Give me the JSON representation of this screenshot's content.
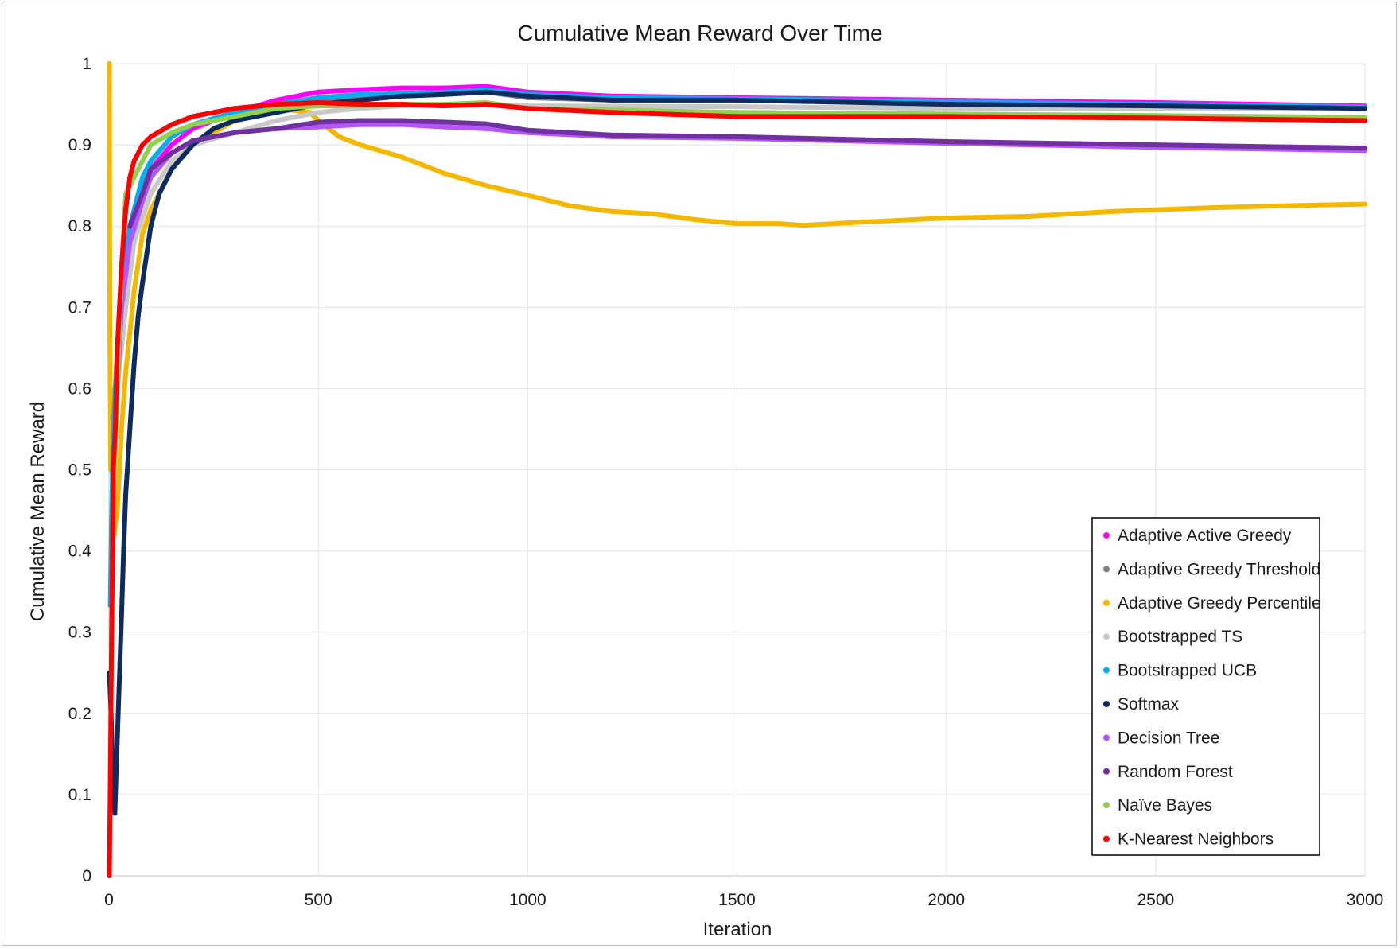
{
  "chart_data": {
    "type": "scatter",
    "title": "Cumulative Mean Reward Over Time",
    "xlabel": "Iteration",
    "ylabel": "Cumulative Mean Reward",
    "xlim": [
      0,
      3000
    ],
    "ylim": [
      0,
      1
    ],
    "xticks": [
      0,
      500,
      1000,
      1500,
      2000,
      2500,
      3000
    ],
    "yticks": [
      0,
      0.1,
      0.2,
      0.3,
      0.4,
      0.5,
      0.6,
      0.7,
      0.8,
      0.9,
      1
    ],
    "grid": "both",
    "legend_position": "bottom-right",
    "series": [
      {
        "name": "Adaptive Active Greedy",
        "color": "#ff00ff",
        "points": [
          [
            10,
            0.5
          ],
          [
            20,
            0.6
          ],
          [
            30,
            0.7
          ],
          [
            50,
            0.78
          ],
          [
            80,
            0.84
          ],
          [
            100,
            0.87
          ],
          [
            150,
            0.9
          ],
          [
            200,
            0.92
          ],
          [
            300,
            0.94
          ],
          [
            400,
            0.955
          ],
          [
            500,
            0.965
          ],
          [
            600,
            0.968
          ],
          [
            700,
            0.97
          ],
          [
            800,
            0.97
          ],
          [
            900,
            0.972
          ],
          [
            1000,
            0.965
          ],
          [
            1200,
            0.96
          ],
          [
            1500,
            0.958
          ],
          [
            2000,
            0.955
          ],
          [
            2500,
            0.952
          ],
          [
            3000,
            0.948
          ]
        ]
      },
      {
        "name": "Adaptive Greedy Threshold",
        "color": "#808080",
        "points": [
          [
            10,
            0.5
          ],
          [
            20,
            0.65
          ],
          [
            30,
            0.72
          ],
          [
            50,
            0.8
          ],
          [
            80,
            0.85
          ],
          [
            100,
            0.88
          ],
          [
            150,
            0.91
          ],
          [
            200,
            0.925
          ],
          [
            300,
            0.94
          ],
          [
            400,
            0.95
          ],
          [
            500,
            0.955
          ],
          [
            600,
            0.958
          ],
          [
            700,
            0.96
          ],
          [
            800,
            0.962
          ],
          [
            900,
            0.965
          ],
          [
            1000,
            0.958
          ],
          [
            1200,
            0.955
          ],
          [
            1500,
            0.955
          ],
          [
            2000,
            0.952
          ],
          [
            2500,
            0.95
          ],
          [
            3000,
            0.946
          ]
        ]
      },
      {
        "name": "Adaptive Greedy Percentile",
        "color": "#f5b800",
        "points": [
          [
            1,
            1.0
          ],
          [
            2,
            0.667
          ],
          [
            4,
            0.5
          ],
          [
            5,
            0.6
          ],
          [
            8,
            0.5
          ],
          [
            12,
            0.42
          ],
          [
            20,
            0.45
          ],
          [
            30,
            0.55
          ],
          [
            40,
            0.62
          ],
          [
            60,
            0.72
          ],
          [
            80,
            0.79
          ],
          [
            100,
            0.82
          ],
          [
            150,
            0.87
          ],
          [
            200,
            0.9
          ],
          [
            300,
            0.93
          ],
          [
            400,
            0.945
          ],
          [
            480,
            0.94
          ],
          [
            500,
            0.93
          ],
          [
            550,
            0.91
          ],
          [
            600,
            0.9
          ],
          [
            700,
            0.885
          ],
          [
            800,
            0.865
          ],
          [
            900,
            0.85
          ],
          [
            1000,
            0.838
          ],
          [
            1100,
            0.825
          ],
          [
            1200,
            0.818
          ],
          [
            1300,
            0.815
          ],
          [
            1400,
            0.808
          ],
          [
            1500,
            0.803
          ],
          [
            1600,
            0.803
          ],
          [
            1660,
            0.801
          ],
          [
            1800,
            0.805
          ],
          [
            2000,
            0.81
          ],
          [
            2200,
            0.812
          ],
          [
            2400,
            0.818
          ],
          [
            2600,
            0.822
          ],
          [
            2800,
            0.825
          ],
          [
            3000,
            0.827
          ]
        ]
      },
      {
        "name": "Bootstrapped TS",
        "color": "#c8c8c8",
        "points": [
          [
            10,
            0.5
          ],
          [
            20,
            0.6
          ],
          [
            40,
            0.7
          ],
          [
            60,
            0.78
          ],
          [
            100,
            0.84
          ],
          [
            150,
            0.88
          ],
          [
            200,
            0.9
          ],
          [
            300,
            0.915
          ],
          [
            400,
            0.93
          ],
          [
            500,
            0.94
          ],
          [
            600,
            0.945
          ],
          [
            700,
            0.948
          ],
          [
            800,
            0.95
          ],
          [
            900,
            0.95
          ],
          [
            1000,
            0.948
          ],
          [
            1500,
            0.947
          ],
          [
            2000,
            0.945
          ],
          [
            2500,
            0.945
          ],
          [
            3000,
            0.944
          ]
        ]
      },
      {
        "name": "Bootstrapped UCB",
        "color": "#00b0f0",
        "points": [
          [
            3,
            0.333
          ],
          [
            5,
            0.4
          ],
          [
            10,
            0.55
          ],
          [
            20,
            0.65
          ],
          [
            30,
            0.72
          ],
          [
            50,
            0.8
          ],
          [
            80,
            0.86
          ],
          [
            100,
            0.88
          ],
          [
            150,
            0.91
          ],
          [
            200,
            0.925
          ],
          [
            300,
            0.94
          ],
          [
            400,
            0.95
          ],
          [
            500,
            0.958
          ],
          [
            600,
            0.962
          ],
          [
            700,
            0.963
          ],
          [
            800,
            0.965
          ],
          [
            900,
            0.968
          ],
          [
            1000,
            0.962
          ],
          [
            1200,
            0.958
          ],
          [
            1500,
            0.957
          ],
          [
            2000,
            0.953
          ],
          [
            2500,
            0.95
          ],
          [
            3000,
            0.947
          ]
        ]
      },
      {
        "name": "Softmax",
        "color": "#0d2b5e",
        "points": [
          [
            1,
            0.25
          ],
          [
            5,
            0.2
          ],
          [
            10,
            0.11
          ],
          [
            14,
            0.077
          ],
          [
            18,
            0.14
          ],
          [
            22,
            0.2
          ],
          [
            26,
            0.26
          ],
          [
            30,
            0.32
          ],
          [
            35,
            0.4
          ],
          [
            40,
            0.47
          ],
          [
            50,
            0.55
          ],
          [
            60,
            0.63
          ],
          [
            70,
            0.69
          ],
          [
            80,
            0.73
          ],
          [
            100,
            0.8
          ],
          [
            120,
            0.84
          ],
          [
            150,
            0.87
          ],
          [
            200,
            0.9
          ],
          [
            250,
            0.92
          ],
          [
            300,
            0.93
          ],
          [
            400,
            0.94
          ],
          [
            500,
            0.95
          ],
          [
            600,
            0.955
          ],
          [
            700,
            0.96
          ],
          [
            800,
            0.962
          ],
          [
            900,
            0.965
          ],
          [
            1000,
            0.96
          ],
          [
            1200,
            0.955
          ],
          [
            1500,
            0.955
          ],
          [
            2000,
            0.95
          ],
          [
            2500,
            0.948
          ],
          [
            3000,
            0.945
          ]
        ]
      },
      {
        "name": "Decision Tree",
        "color": "#b455ff",
        "points": [
          [
            10,
            0.5
          ],
          [
            20,
            0.6
          ],
          [
            30,
            0.7
          ],
          [
            50,
            0.78
          ],
          [
            80,
            0.83
          ],
          [
            100,
            0.86
          ],
          [
            150,
            0.89
          ],
          [
            200,
            0.905
          ],
          [
            300,
            0.915
          ],
          [
            400,
            0.92
          ],
          [
            500,
            0.922
          ],
          [
            600,
            0.925
          ],
          [
            700,
            0.925
          ],
          [
            800,
            0.922
          ],
          [
            900,
            0.92
          ],
          [
            1000,
            0.915
          ],
          [
            1200,
            0.91
          ],
          [
            1500,
            0.908
          ],
          [
            2000,
            0.902
          ],
          [
            2500,
            0.897
          ],
          [
            3000,
            0.893
          ]
        ]
      },
      {
        "name": "Random Forest",
        "color": "#7030a0",
        "points": [
          [
            50,
            0.8
          ],
          [
            80,
            0.84
          ],
          [
            100,
            0.87
          ],
          [
            150,
            0.89
          ],
          [
            200,
            0.905
          ],
          [
            300,
            0.915
          ],
          [
            400,
            0.92
          ],
          [
            500,
            0.928
          ],
          [
            600,
            0.93
          ],
          [
            700,
            0.93
          ],
          [
            800,
            0.928
          ],
          [
            900,
            0.926
          ],
          [
            1000,
            0.918
          ],
          [
            1200,
            0.912
          ],
          [
            1500,
            0.91
          ],
          [
            2000,
            0.904
          ],
          [
            2500,
            0.9
          ],
          [
            3000,
            0.896
          ]
        ]
      },
      {
        "name": "Naïve Bayes",
        "color": "#92d050",
        "points": [
          [
            10,
            0.45
          ],
          [
            20,
            0.6
          ],
          [
            30,
            0.75
          ],
          [
            40,
            0.84
          ],
          [
            60,
            0.86
          ],
          [
            80,
            0.88
          ],
          [
            100,
            0.9
          ],
          [
            150,
            0.915
          ],
          [
            200,
            0.925
          ],
          [
            300,
            0.935
          ],
          [
            400,
            0.945
          ],
          [
            500,
            0.948
          ],
          [
            600,
            0.948
          ],
          [
            700,
            0.95
          ],
          [
            800,
            0.95
          ],
          [
            900,
            0.952
          ],
          [
            1000,
            0.945
          ],
          [
            1500,
            0.94
          ],
          [
            2000,
            0.938
          ],
          [
            2500,
            0.936
          ],
          [
            3000,
            0.934
          ]
        ]
      },
      {
        "name": "K-Nearest Neighbors",
        "color": "#ff0000",
        "points": [
          [
            1,
            0.0
          ],
          [
            4,
            0.167
          ],
          [
            6,
            0.286
          ],
          [
            8,
            0.375
          ],
          [
            10,
            0.5
          ],
          [
            15,
            0.55
          ],
          [
            20,
            0.65
          ],
          [
            30,
            0.75
          ],
          [
            40,
            0.82
          ],
          [
            50,
            0.86
          ],
          [
            60,
            0.88
          ],
          [
            80,
            0.9
          ],
          [
            100,
            0.91
          ],
          [
            150,
            0.925
          ],
          [
            200,
            0.935
          ],
          [
            250,
            0.94
          ],
          [
            300,
            0.945
          ],
          [
            400,
            0.95
          ],
          [
            500,
            0.952
          ],
          [
            600,
            0.95
          ],
          [
            700,
            0.95
          ],
          [
            800,
            0.948
          ],
          [
            900,
            0.95
          ],
          [
            1000,
            0.945
          ],
          [
            1200,
            0.94
          ],
          [
            1500,
            0.935
          ],
          [
            2000,
            0.935
          ],
          [
            2500,
            0.933
          ],
          [
            3000,
            0.93
          ]
        ]
      }
    ]
  }
}
